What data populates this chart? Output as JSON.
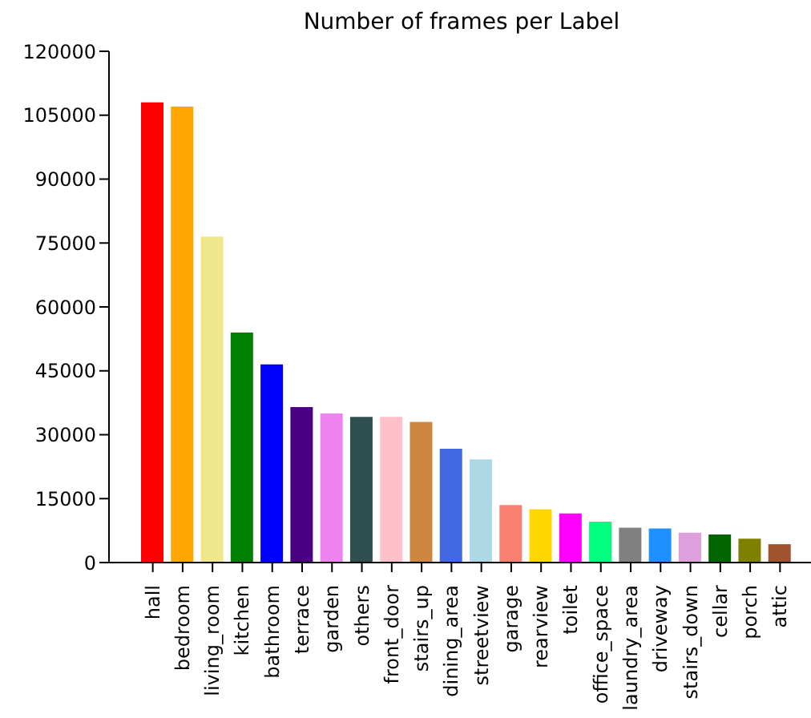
{
  "chart_data": {
    "type": "bar",
    "title": "Number of frames per Label",
    "categories": [
      "hall",
      "bedroom",
      "living_room",
      "kitchen",
      "bathroom",
      "terrace",
      "garden",
      "others",
      "front_door",
      "stairs_up",
      "dining_area",
      "streetview",
      "garage",
      "rearview",
      "toilet",
      "office_space",
      "laundry_area",
      "driveway",
      "stairs_down",
      "cellar",
      "porch",
      "attic"
    ],
    "values": [
      108000,
      107000,
      76500,
      54000,
      46500,
      36500,
      35000,
      34200,
      34200,
      33000,
      26700,
      24200,
      13500,
      12500,
      11500,
      9600,
      8200,
      8000,
      7000,
      6600,
      5600,
      4300
    ],
    "colors": [
      "#ff0000",
      "#ffa500",
      "#f0e68c",
      "#008000",
      "#0000ff",
      "#4b0082",
      "#ee82ee",
      "#2f4f4f",
      "#ffc0cb",
      "#cd853f",
      "#4169e1",
      "#add8e6",
      "#fa8072",
      "#ffd700",
      "#ff00ff",
      "#00ff7f",
      "#808080",
      "#1e90ff",
      "#dda0dd",
      "#006400",
      "#808000",
      "#a0522d"
    ],
    "ylim": [
      0,
      120000
    ],
    "yticks": [
      0,
      15000,
      30000,
      45000,
      60000,
      75000,
      90000,
      105000,
      120000
    ],
    "grid": false,
    "legend": false
  }
}
